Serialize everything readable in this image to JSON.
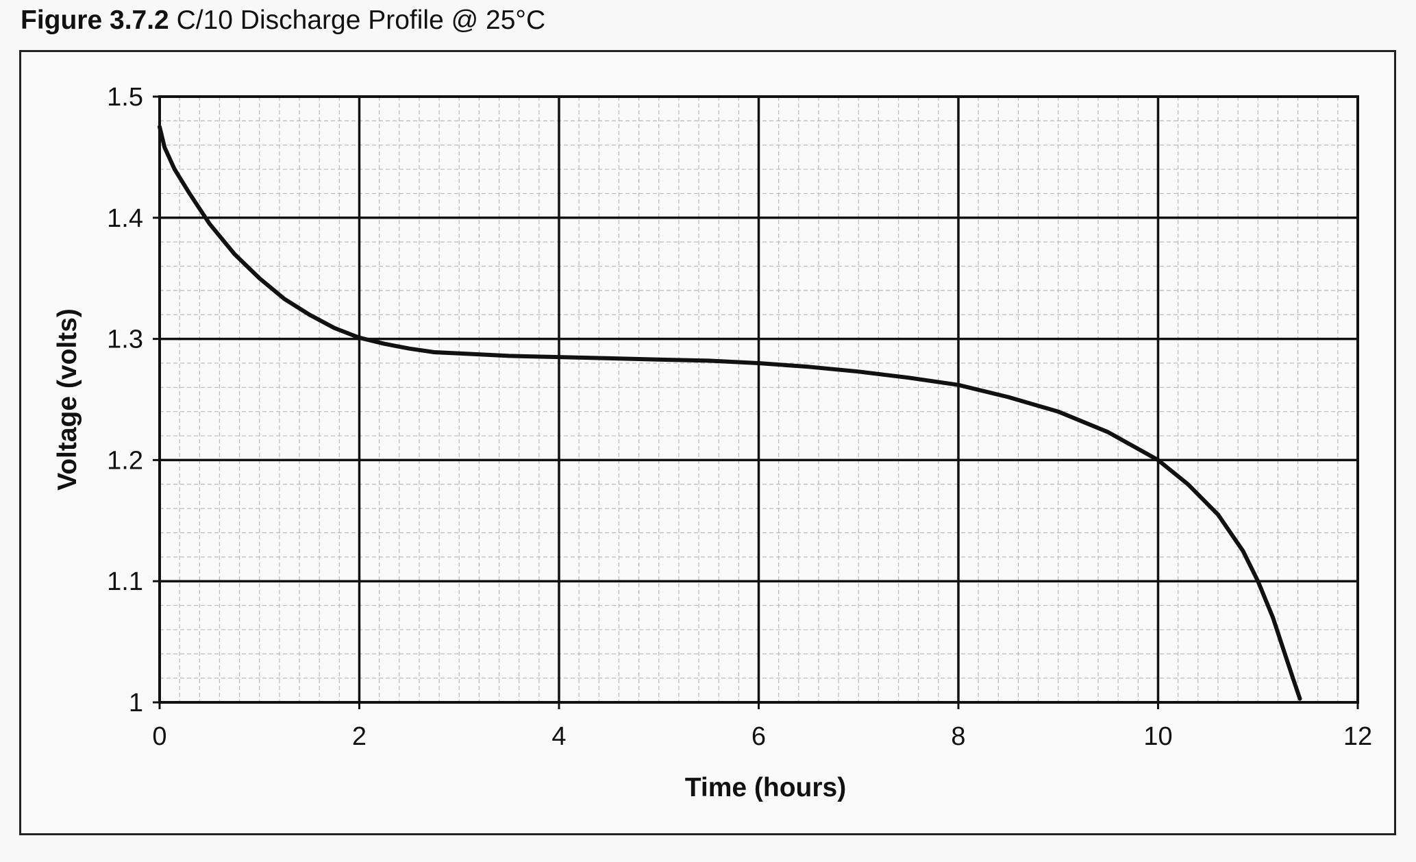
{
  "figure": {
    "number": "Figure 3.7.2",
    "title": "C/10 Discharge Profile @ 25°C"
  },
  "chart_data": {
    "type": "line",
    "title": "C/10 Discharge Profile @ 25°C",
    "xlabel": "Time (hours)",
    "ylabel": "Voltage (volts)",
    "xlim": [
      0,
      12
    ],
    "ylim": [
      1,
      1.5
    ],
    "xticks": [
      "0",
      "2",
      "4",
      "6",
      "8",
      "10",
      "12"
    ],
    "yticks": [
      "1",
      "1.1",
      "1.2",
      "1.3",
      "1.4",
      "1.5"
    ],
    "grid": true,
    "legend": "none",
    "line_color": "#111111",
    "series": [
      {
        "x": [
          0,
          0.05,
          0.15,
          0.3,
          0.5,
          0.75,
          1.0,
          1.25,
          1.5,
          1.75,
          2.0,
          2.25,
          2.5,
          2.75,
          3.0,
          3.5,
          4.0,
          4.5,
          5.0,
          5.5,
          6.0,
          6.5,
          7.0,
          7.5,
          8.0,
          8.5,
          9.0,
          9.5,
          10.0,
          10.3,
          10.6,
          10.85,
          11.0,
          11.15,
          11.25,
          11.35,
          11.42
        ],
        "y": [
          1.475,
          1.458,
          1.44,
          1.42,
          1.395,
          1.37,
          1.35,
          1.333,
          1.32,
          1.309,
          1.301,
          1.296,
          1.292,
          1.289,
          1.288,
          1.286,
          1.285,
          1.284,
          1.283,
          1.282,
          1.28,
          1.277,
          1.273,
          1.268,
          1.262,
          1.252,
          1.24,
          1.223,
          1.2,
          1.18,
          1.155,
          1.125,
          1.1,
          1.07,
          1.045,
          1.02,
          1.003
        ]
      }
    ]
  }
}
